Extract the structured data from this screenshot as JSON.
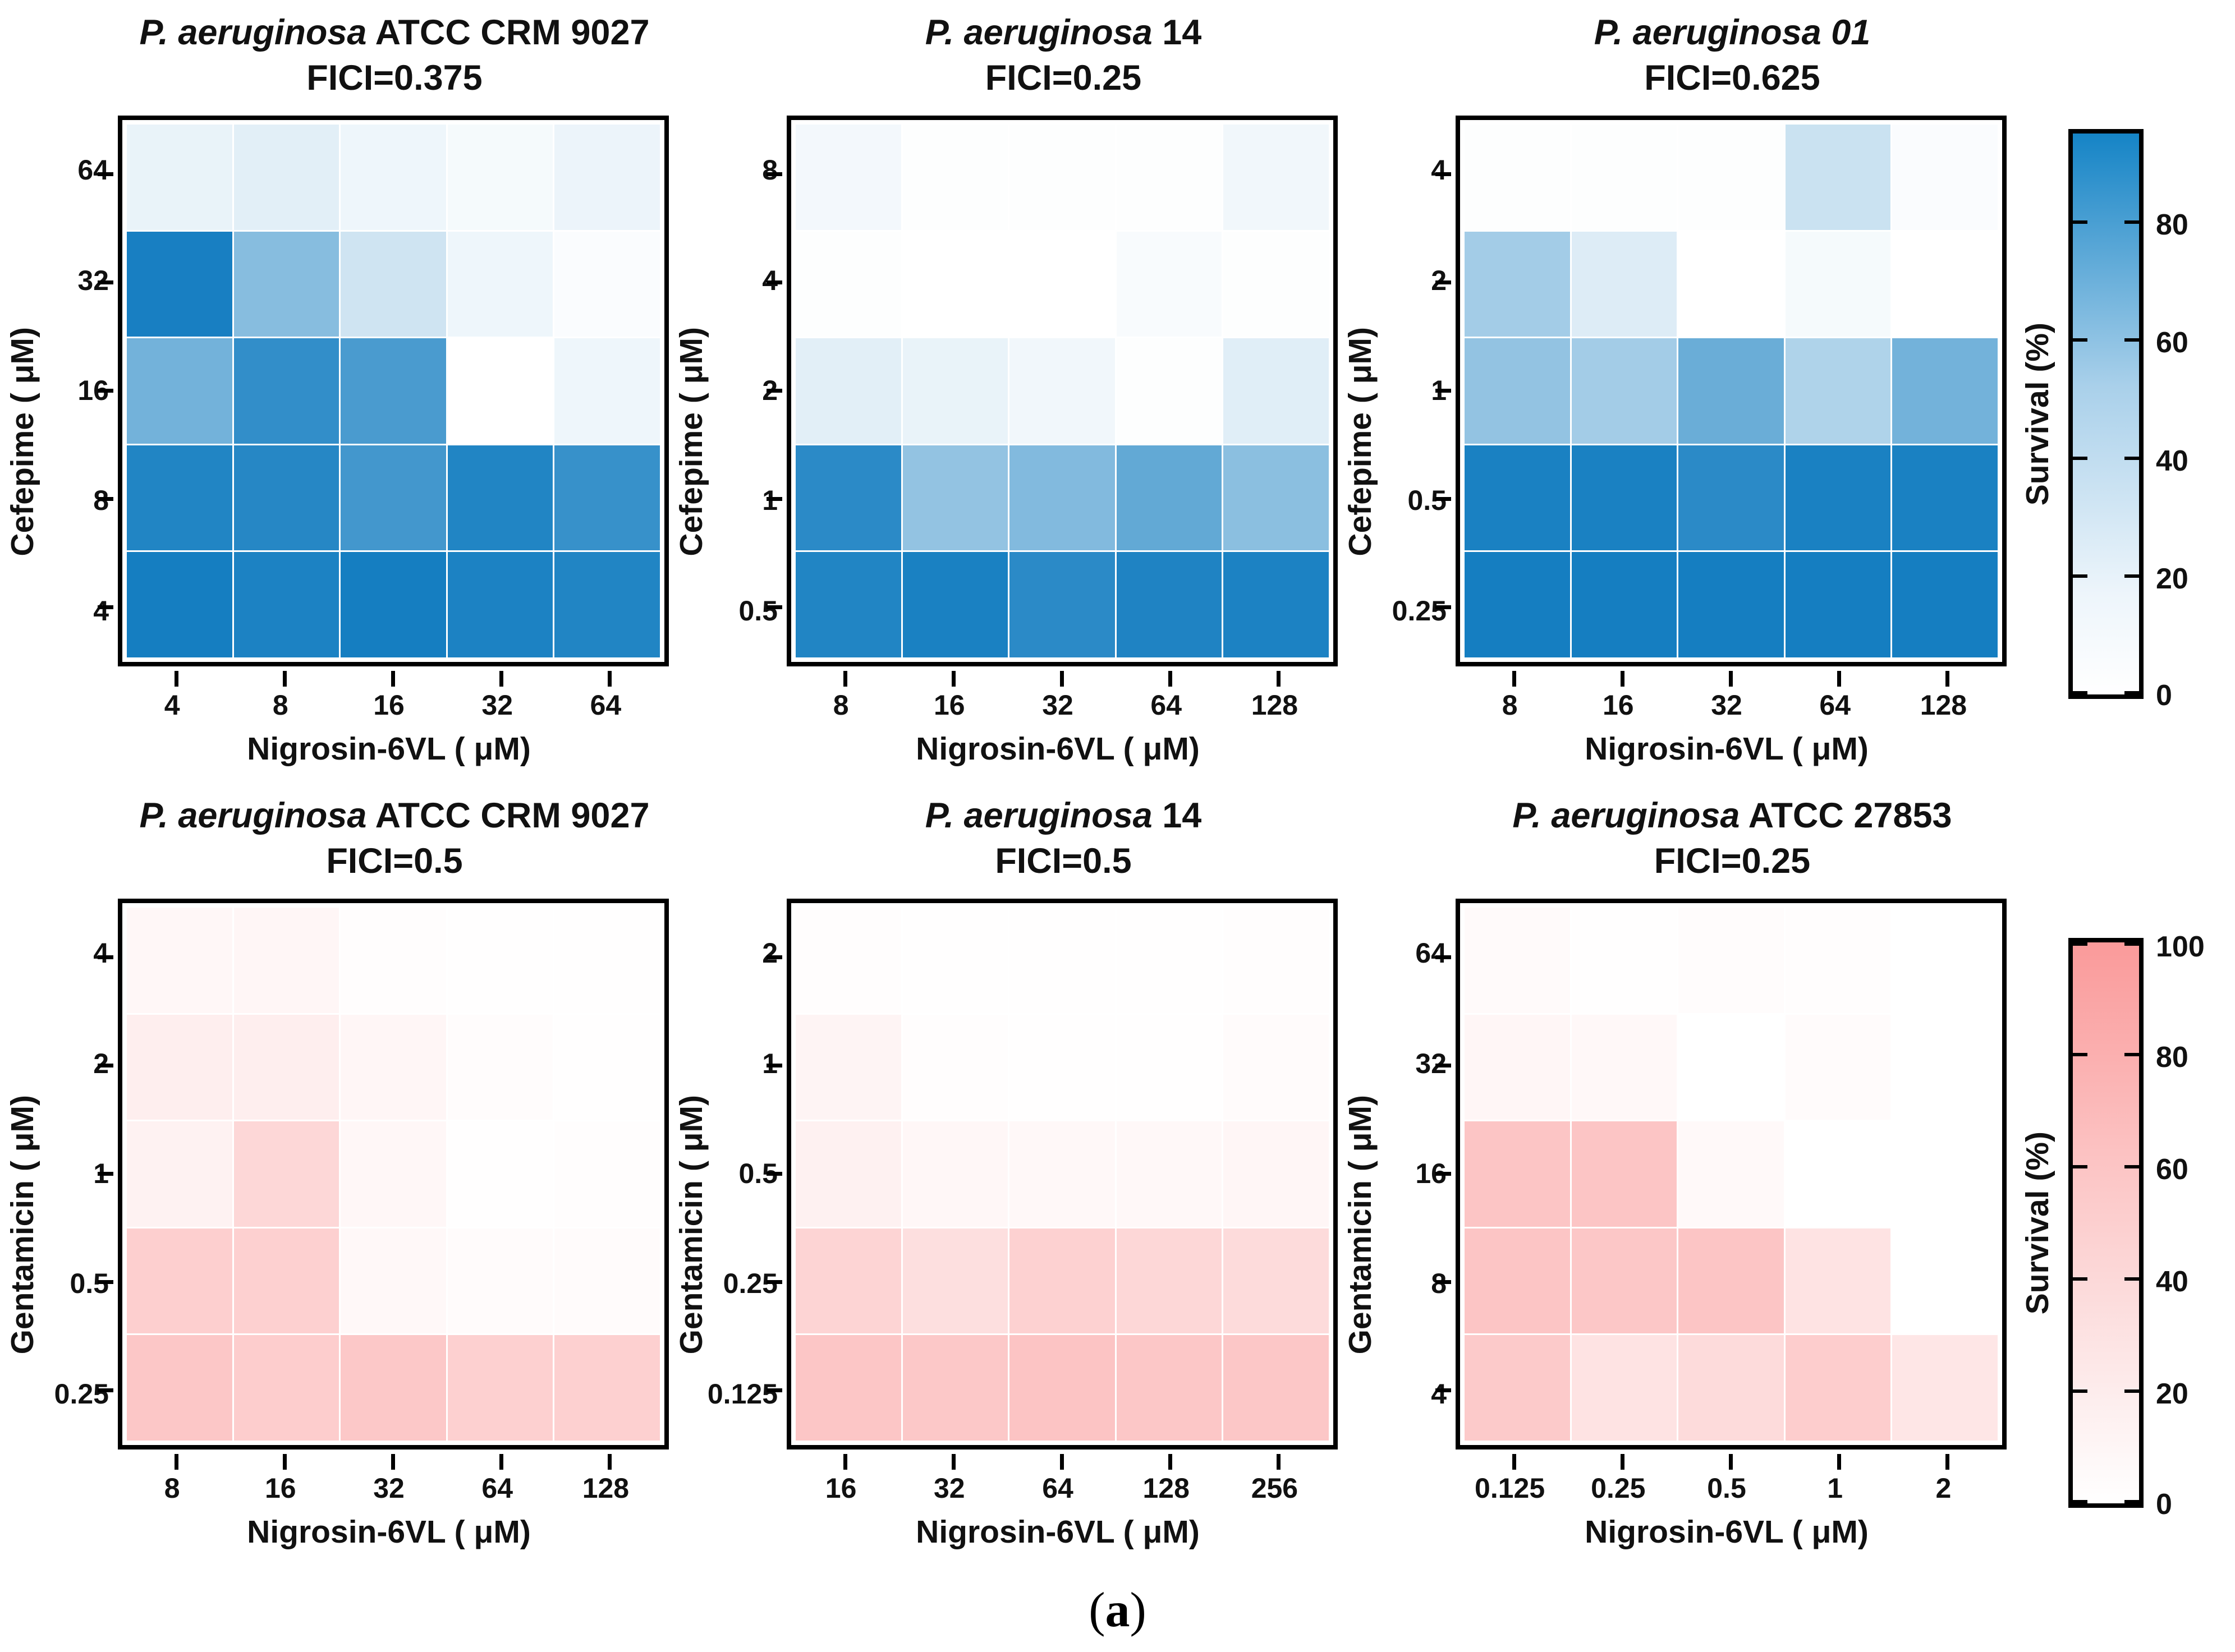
{
  "figure": {
    "caption_open": "(",
    "caption_letter": "a",
    "caption_close": ")"
  },
  "colorbars": {
    "blue": {
      "label": "Survival (%)",
      "ticks": [
        0,
        20,
        40,
        60,
        80
      ],
      "top_value": 95,
      "max_color": "#0E7ABF"
    },
    "red": {
      "label": "Survival (%)",
      "ticks": [
        0,
        20,
        40,
        60,
        80,
        100
      ],
      "top_value": 100,
      "max_color": "#FA9A9A"
    }
  },
  "chart_data": [
    {
      "type": "heatmap",
      "title_italic": "P. aeruginosa",
      "title_rest": " ATCC CRM 9027",
      "fici": "FICI=0.375",
      "scheme": "blue",
      "max_color": "#0E7ABF",
      "x_label": "Nigrosin-6VL ( μM)",
      "y_label": "Cefepime ( μM)",
      "value_label": "Survival (%)",
      "x_ticks": [
        "4",
        "8",
        "16",
        "32",
        "64"
      ],
      "y_ticks": [
        "64",
        "32",
        "16",
        "8",
        "4"
      ],
      "values": [
        [
          9,
          12,
          7,
          4,
          8
        ],
        [
          96,
          50,
          20,
          7,
          2
        ],
        [
          58,
          85,
          75,
          0,
          7
        ],
        [
          92,
          90,
          78,
          92,
          83
        ],
        [
          97,
          94,
          97,
          94,
          92
        ]
      ]
    },
    {
      "type": "heatmap",
      "title_italic": "P. aeruginosa",
      "title_rest": " 14",
      "fici": "FICI=0.25",
      "scheme": "blue",
      "max_color": "#0E7ABF",
      "x_label": "Nigrosin-6VL ( μM)",
      "y_label": "Cefepime ( μM)",
      "value_label": "Survival (%)",
      "x_ticks": [
        "8",
        "16",
        "32",
        "64",
        "128"
      ],
      "y_ticks": [
        "8",
        "4",
        "2",
        "1",
        "0.5"
      ],
      "values": [
        [
          5,
          1,
          1,
          1,
          6
        ],
        [
          1,
          0,
          0,
          3,
          1
        ],
        [
          12,
          9,
          6,
          1,
          13
        ],
        [
          88,
          45,
          52,
          65,
          48
        ],
        [
          92,
          95,
          88,
          93,
          94
        ]
      ]
    },
    {
      "type": "heatmap",
      "title_italic": "P. aeruginosa 01",
      "title_rest": "",
      "fici": "FICI=0.625",
      "scheme": "blue",
      "max_color": "#0E7ABF",
      "x_label": "Nigrosin-6VL ( μM)",
      "y_label": "Cefepime ( μM)",
      "value_label": "Survival (%)",
      "x_ticks": [
        "8",
        "16",
        "32",
        "64",
        "128"
      ],
      "y_ticks": [
        "4",
        "2",
        "1",
        "0.5",
        "0.25"
      ],
      "values": [
        [
          1,
          1,
          1,
          22,
          2
        ],
        [
          38,
          14,
          0,
          4,
          0
        ],
        [
          45,
          38,
          62,
          33,
          58
        ],
        [
          95,
          95,
          88,
          95,
          95
        ],
        [
          97,
          97,
          97,
          97,
          97
        ]
      ]
    },
    {
      "type": "heatmap",
      "title_italic": "P. aeruginosa",
      "title_rest": " ATCC CRM 9027",
      "fici": "FICI=0.5",
      "scheme": "red",
      "max_color": "#FA9A9A",
      "x_label": "Nigrosin-6VL ( μM)",
      "y_label": "Gentamicin ( μM)",
      "value_label": "Survival (%)",
      "x_ticks": [
        "8",
        "16",
        "32",
        "64",
        "128"
      ],
      "y_ticks": [
        "4",
        "2",
        "1",
        "0.5",
        "0.25"
      ],
      "values": [
        [
          8,
          9,
          2,
          1,
          1
        ],
        [
          17,
          17,
          9,
          3,
          1
        ],
        [
          13,
          40,
          8,
          1,
          2
        ],
        [
          48,
          47,
          7,
          4,
          4
        ],
        [
          55,
          50,
          54,
          47,
          47
        ]
      ]
    },
    {
      "type": "heatmap",
      "title_italic": "P. aeruginosa",
      "title_rest": " 14",
      "fici": "FICI=0.5",
      "scheme": "red",
      "max_color": "#FA9A9A",
      "x_label": "Nigrosin-6VL ( μM)",
      "y_label": "Gentamicin ( μM)",
      "value_label": "Survival (%)",
      "x_ticks": [
        "16",
        "32",
        "64",
        "128",
        "256"
      ],
      "y_ticks": [
        "2",
        "1",
        "0.5",
        "0.25",
        "0.125"
      ],
      "values": [
        [
          2,
          1,
          1,
          1,
          2
        ],
        [
          11,
          2,
          1,
          1,
          4
        ],
        [
          14,
          8,
          7,
          7,
          9
        ],
        [
          43,
          32,
          46,
          40,
          36
        ],
        [
          56,
          54,
          58,
          55,
          55
        ]
      ]
    },
    {
      "type": "heatmap",
      "title_italic": "P. aeruginosa",
      "title_rest": " ATCC 27853",
      "fici": "FICI=0.25",
      "scheme": "red",
      "max_color": "#FA9A9A",
      "x_label": "Nigrosin-6VL ( μM)",
      "y_label": "Gentamicin ( μM)",
      "value_label": "Survival (%)",
      "x_ticks": [
        "0.125",
        "0.25",
        "0.5",
        "1",
        "2"
      ],
      "y_ticks": [
        "64",
        "32",
        "16",
        "8",
        "4"
      ],
      "values": [
        [
          5,
          1,
          3,
          2,
          0
        ],
        [
          9,
          7,
          0,
          4,
          0
        ],
        [
          57,
          57,
          6,
          0,
          0
        ],
        [
          57,
          55,
          57,
          28,
          0
        ],
        [
          52,
          28,
          36,
          50,
          25
        ]
      ]
    }
  ]
}
